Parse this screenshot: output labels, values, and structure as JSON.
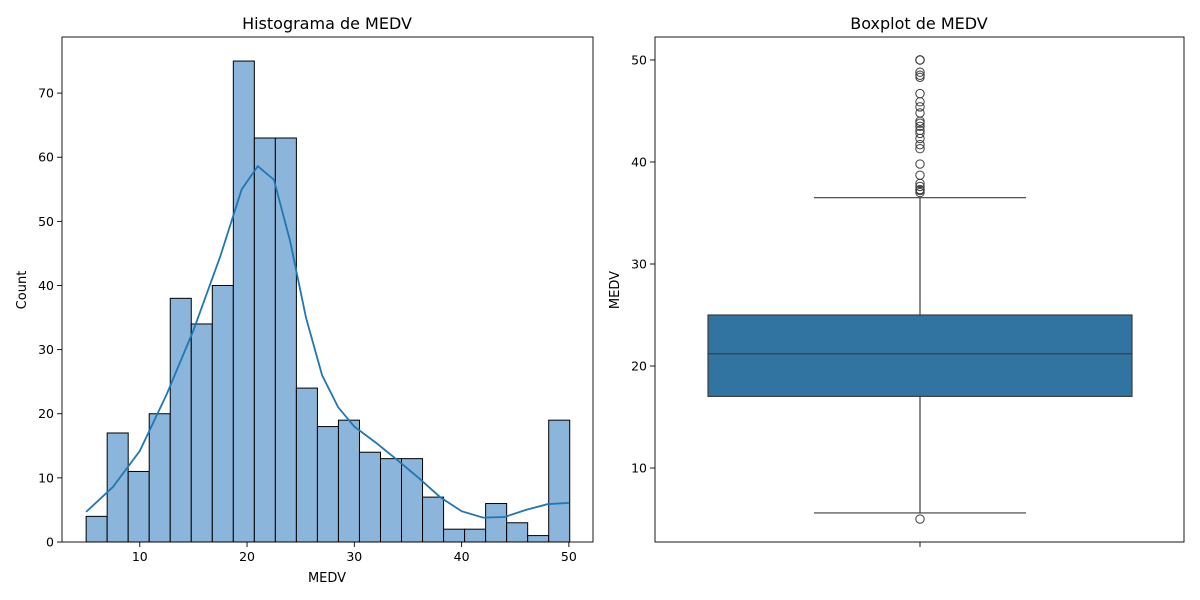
{
  "chart_data": [
    {
      "type": "histogram",
      "title": "Histograma de MEDV",
      "xlabel": "MEDV",
      "ylabel": "Count",
      "xlim": [
        2.75,
        52.25
      ],
      "ylim": [
        0,
        78.75
      ],
      "x_ticks": [
        10,
        20,
        30,
        40,
        50
      ],
      "y_ticks": [
        0,
        10,
        20,
        30,
        40,
        50,
        60,
        70
      ],
      "bin_start": 5,
      "bin_width": 1.96,
      "counts": [
        4,
        17,
        11,
        20,
        38,
        34,
        40,
        75,
        63,
        63,
        24,
        18,
        19,
        14,
        13,
        13,
        7,
        2,
        2,
        6,
        3,
        1,
        19
      ],
      "bar_color": "#8bb5da",
      "kde": {
        "x": [
          5,
          7.5,
          10,
          12.5,
          15,
          17.5,
          19.5,
          21,
          22.5,
          24,
          25.5,
          27,
          28.5,
          30,
          32,
          34,
          36,
          38,
          40,
          42,
          44,
          46,
          48,
          50
        ],
        "y": [
          4.7,
          8.6,
          14.2,
          23,
          33,
          44.5,
          55,
          58.6,
          56.5,
          47,
          35,
          26,
          21,
          18,
          15.5,
          12.8,
          10,
          7,
          4.8,
          3.8,
          3.9,
          5,
          5.9,
          6.1
        ],
        "color": "#1f77b4"
      }
    },
    {
      "type": "boxplot",
      "title": "Boxplot de MEDV",
      "ylabel": "MEDV",
      "ylim": [
        2.75,
        52.25
      ],
      "y_ticks": [
        10,
        20,
        30,
        40,
        50
      ],
      "box": {
        "min": 5.6,
        "q1": 17.025,
        "median": 21.2,
        "q3": 25.0,
        "max": 36.5,
        "color": "#3274a1"
      },
      "outliers": [
        50,
        50,
        50,
        50,
        48.8,
        48.5,
        48.3,
        46.7,
        45.9,
        45.4,
        44.8,
        44.0,
        43.8,
        43.5,
        43.1,
        42.8,
        42.3,
        41.7,
        41.3,
        39.8,
        38.7,
        37.9,
        37.6,
        37.3,
        37.2,
        37.0,
        5.0
      ]
    }
  ]
}
